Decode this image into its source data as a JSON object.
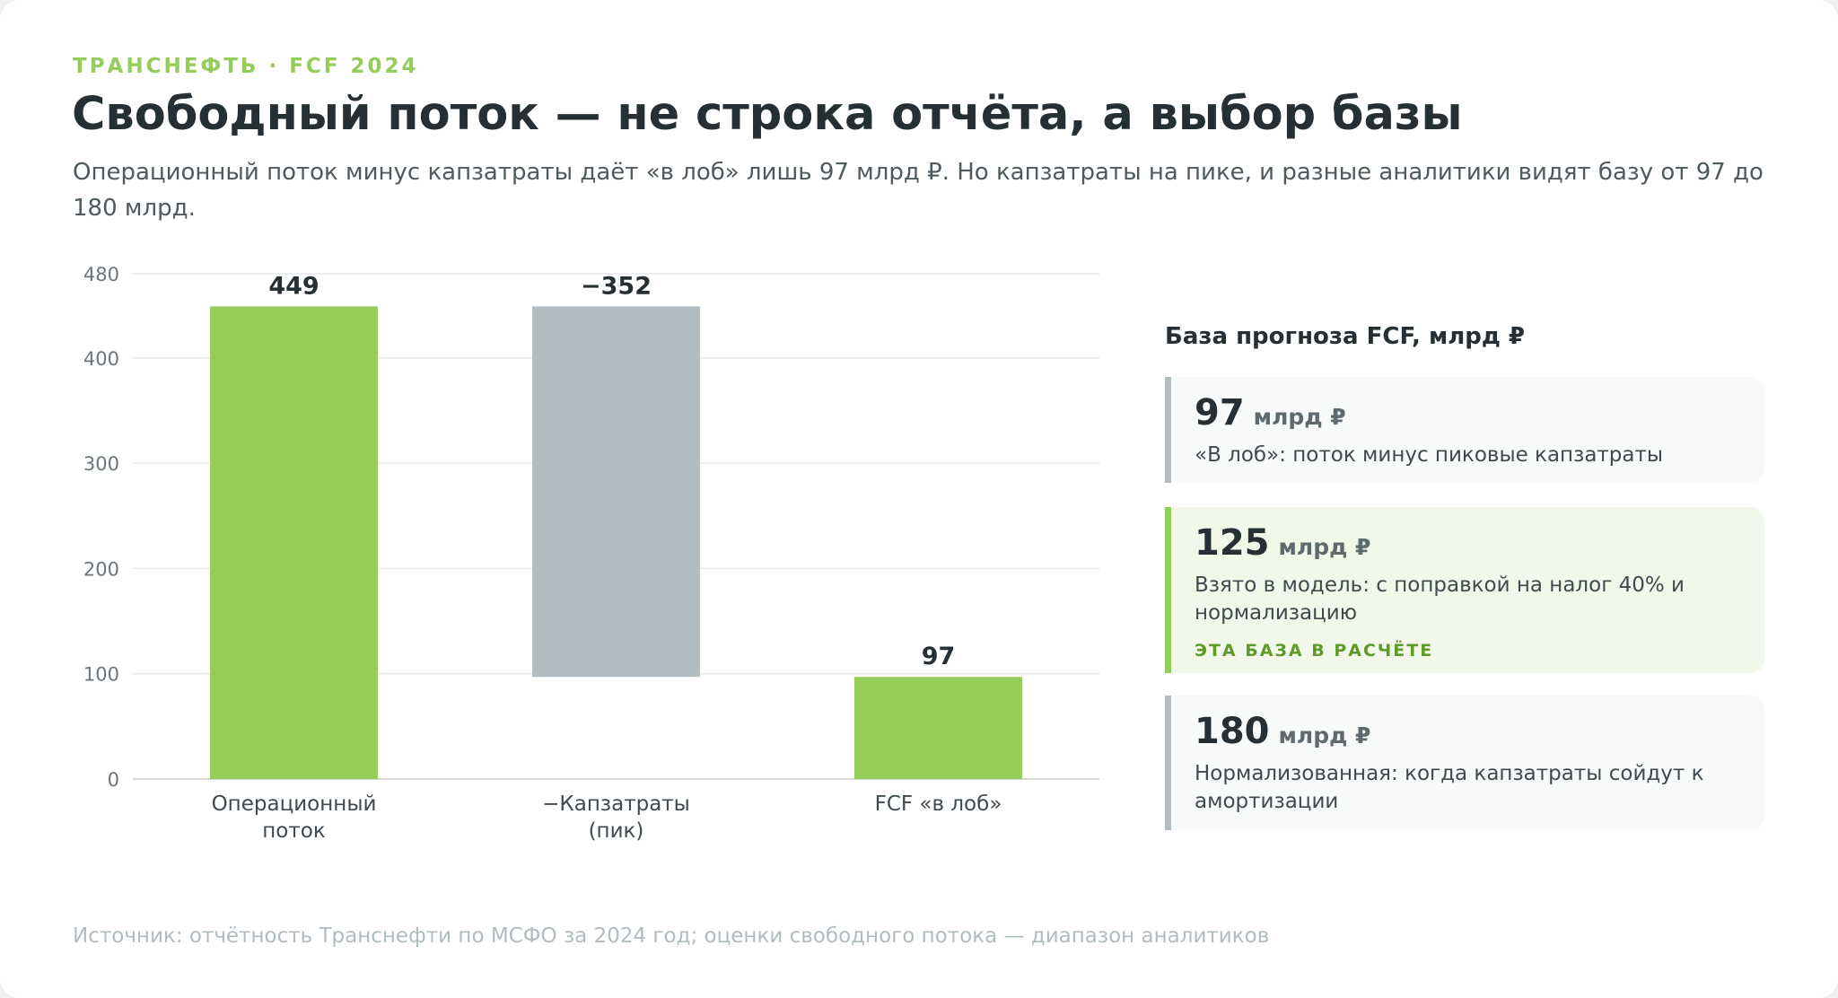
{
  "eyebrow": "ТРАНСНЕФТЬ · FCF 2024",
  "title": "Свободный поток — не строка отчёта, а выбор базы",
  "subtitle": "Операционный поток минус капзатраты даёт «в лоб» лишь 97 млрд ₽. Но капзатраты на пике, и разные аналитики видят базу от 97 до 180 млрд.",
  "chart_data": {
    "type": "bar",
    "subtype": "waterfall",
    "categories": [
      [
        "Операционный",
        "поток"
      ],
      [
        "−Капзатраты",
        "(пик)"
      ],
      [
        "FCF «в лоб»"
      ]
    ],
    "bars": [
      {
        "from": 0,
        "to": 449,
        "label": "449",
        "kind": "positive"
      },
      {
        "from": 97,
        "to": 449,
        "label": "−352",
        "kind": "negative"
      },
      {
        "from": 0,
        "to": 97,
        "label": "97",
        "kind": "positive"
      }
    ],
    "yticks": [
      0,
      100,
      200,
      300,
      400,
      480
    ],
    "ylim": [
      0,
      480
    ],
    "grid": true,
    "colors": {
      "positive": "#95cd5b",
      "negative": "#b2bcc1",
      "grid": "#e6e9ea",
      "axis": "#d3d8da"
    }
  },
  "panel": {
    "title": "База прогноза FCF, млрд ₽",
    "cards": [
      {
        "value": "97",
        "unit": "млрд ₽",
        "desc": "«В лоб»: поток минус пиковые капзатраты",
        "tag": ""
      },
      {
        "value": "125",
        "unit": "млрд ₽",
        "desc": "Взято в модель: с поправкой на налог 40% и нормализацию",
        "tag": "ЭТА БАЗА В РАСЧЁТЕ"
      },
      {
        "value": "180",
        "unit": "млрд ₽",
        "desc": "Нормализованная: когда капзатраты сойдут к амортизации",
        "tag": ""
      }
    ]
  },
  "source": "Источник: отчётность Транснефти по МСФО за 2024 год; оценки свободного потока — диапазон аналитиков"
}
